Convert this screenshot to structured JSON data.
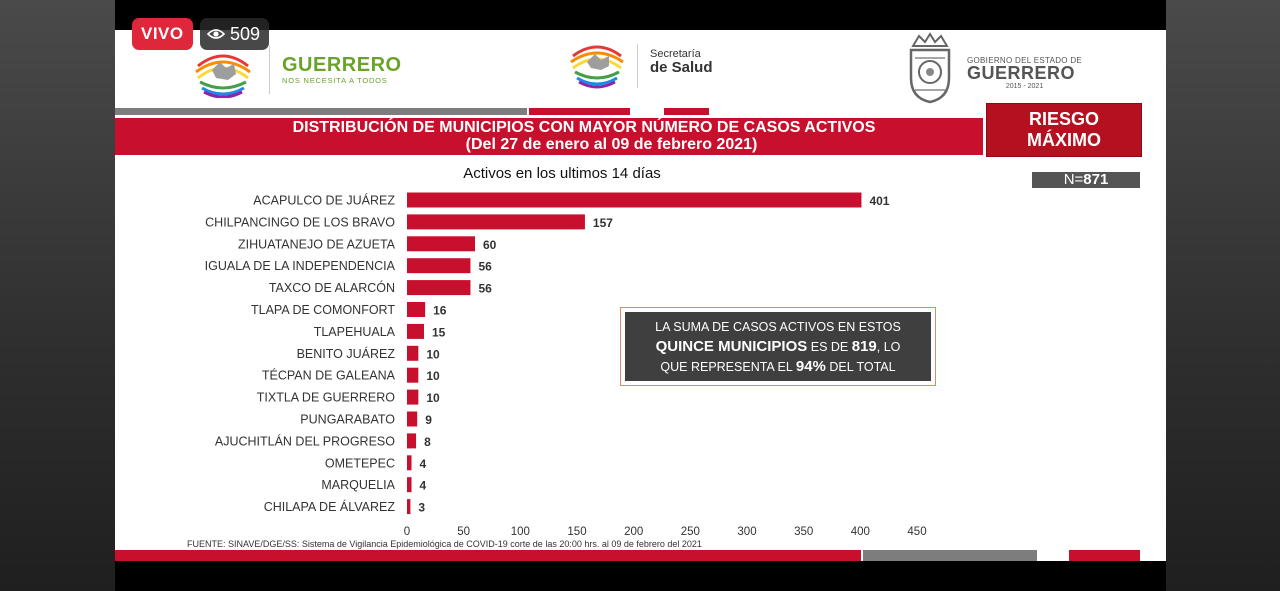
{
  "stream": {
    "live_label": "VIVO",
    "viewer_count": "509",
    "icon": "eye-icon"
  },
  "header": {
    "brand_left_name": "GUERRERO",
    "brand_left_tagline": "NOS NECESITA A TODOS",
    "secretaria_line1": "Secretaría",
    "secretaria_line2": "de Salud",
    "gov_line1": "GOBIERNO DEL ESTADO DE",
    "gov_line2": "GUERRERO",
    "gov_line3": "2015 - 2021"
  },
  "title_line1": "DISTRIBUCIÓN DE MUNICIPIOS CON MAYOR NÚMERO DE  CASOS ACTIVOS",
  "title_line2": "(Del 27 de enero al 09 de febrero 2021)",
  "risk_line1": "RIESGO",
  "risk_line2": "MÁXIMO",
  "n_label": "N=",
  "n_value": "871",
  "callout": {
    "l1": "LA SUMA DE CASOS ACTIVOS EN ESTOS",
    "l2a": "QUINCE MUNICIPIOS",
    "l2b": " ES DE ",
    "l2c": "819",
    "l2d": ", LO",
    "l3a": "QUE REPRESENTA EL ",
    "l3b": "94%",
    "l3c": " DEL TOTAL"
  },
  "source": "FUENTE: SINAVE/DGE/SS: Sistema de Vigilancia Epidemiológica de COVID-19 corte de las 20:00 hrs. al 09 de febrero del 2021",
  "colors": {
    "bar": "#c8102e",
    "accent_red": "#c8102e",
    "gray": "#7d7d7d",
    "callout_bg": "#3f3f3f"
  },
  "chart_data": {
    "type": "bar",
    "orientation": "horizontal",
    "title": "Activos en los ultimos 14 días",
    "categories": [
      "ACAPULCO DE JUÁREZ",
      "CHILPANCINGO DE LOS BRAVO",
      "ZIHUATANEJO DE AZUETA",
      "IGUALA DE LA INDEPENDENCIA",
      "TAXCO DE ALARCÓN",
      "TLAPA DE COMONFORT",
      "TLAPEHUALA",
      "BENITO JUÁREZ",
      "TÉCPAN DE GALEANA",
      "TIXTLA DE GUERRERO",
      "PUNGARABATO",
      "AJUCHITLÁN DEL PROGRESO",
      "OMETEPEC",
      "MARQUELIA",
      "CHILAPA DE ÁLVAREZ"
    ],
    "values": [
      401,
      157,
      60,
      56,
      56,
      16,
      15,
      10,
      10,
      10,
      9,
      8,
      4,
      4,
      3
    ],
    "xlim": [
      0,
      450
    ],
    "xticks": [
      0,
      50,
      100,
      150,
      200,
      250,
      300,
      350,
      400,
      450
    ],
    "grid": false,
    "legend": "none"
  }
}
